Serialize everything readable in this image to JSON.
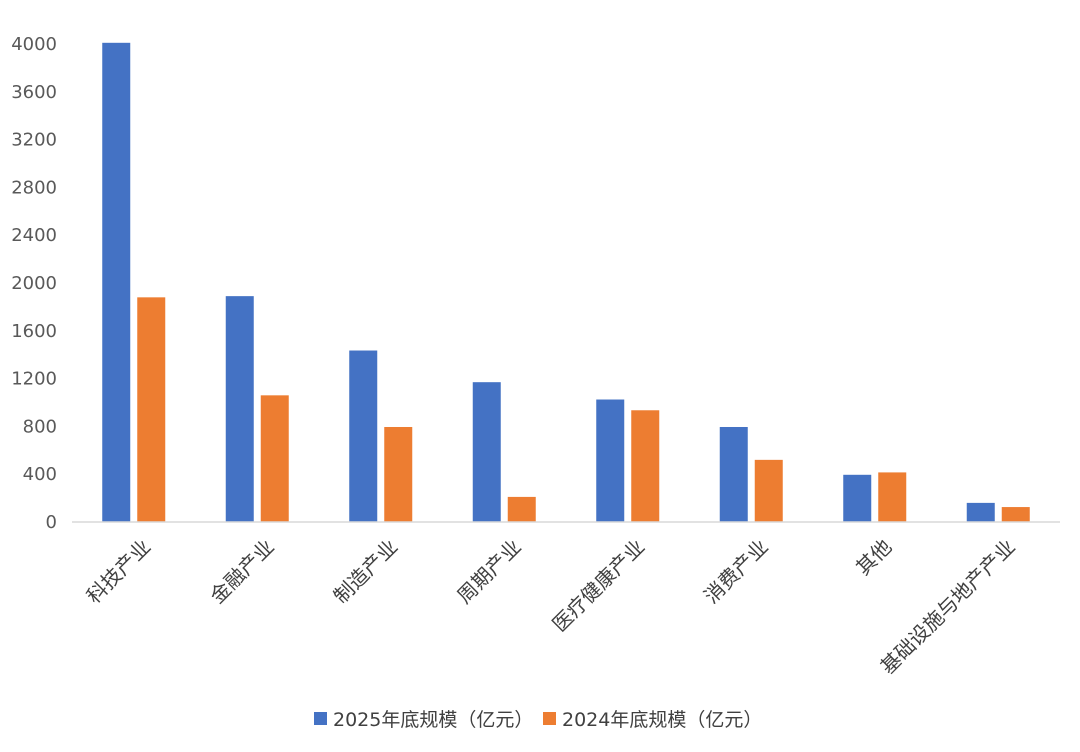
{
  "chart_data": {
    "type": "bar",
    "categories": [
      "科技产业",
      "金融产业",
      "制造产业",
      "周期产业",
      "医疗健康产业",
      "消费产业",
      "其他",
      "基础设施与地产产业"
    ],
    "series": [
      {
        "name": "2025年底规模（亿元）",
        "color": "#4472C4",
        "values": [
          4010,
          1890,
          1435,
          1170,
          1025,
          795,
          395,
          160
        ]
      },
      {
        "name": "2024年底规模（亿元）",
        "color": "#ED7D31",
        "values": [
          1880,
          1060,
          795,
          210,
          935,
          520,
          415,
          125
        ]
      }
    ],
    "yticks": [
      "0",
      "400",
      "800",
      "1200",
      "1600",
      "2000",
      "2400",
      "2800",
      "3200",
      "3600",
      "4000"
    ],
    "ylim": [
      0,
      4000
    ],
    "grid": false,
    "legend": "bottom"
  }
}
